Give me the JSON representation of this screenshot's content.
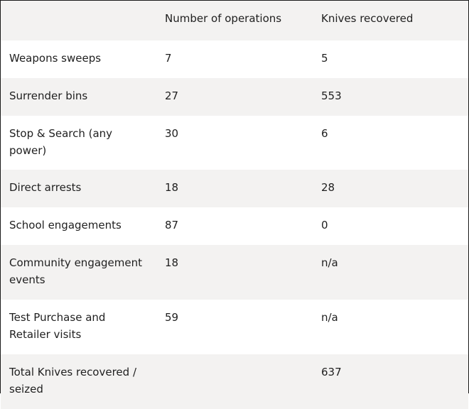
{
  "table": {
    "headers": [
      "",
      "Number of operations",
      "Knives recovered"
    ],
    "rows": [
      {
        "label": "Weapons sweeps",
        "operations": "7",
        "knives": "5"
      },
      {
        "label": "Surrender bins",
        "operations": "27",
        "knives": "553"
      },
      {
        "label": "Stop & Search (any power)",
        "operations": "30",
        "knives": "6"
      },
      {
        "label": "Direct arrests",
        "operations": "18",
        "knives": "28"
      },
      {
        "label": "School engagements",
        "operations": "87",
        "knives": "0"
      },
      {
        "label": "Community engagement events",
        "operations": "18",
        "knives": "n/a"
      },
      {
        "label": "Test Purchase and Retailer visits",
        "operations": "59",
        "knives": "n/a"
      },
      {
        "label": "Total Knives recovered / seized",
        "operations": "",
        "knives": "637"
      }
    ]
  },
  "colors": {
    "alt_row": "#f3f2f1",
    "plain_row": "#ffffff",
    "text": "#1f1f1f",
    "border": "#1a1a1a"
  }
}
